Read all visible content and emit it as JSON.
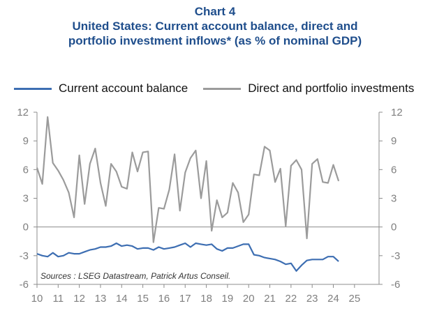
{
  "header": {
    "chart_number": "Chart 4",
    "title_line1": "United States: Current account balance, direct and",
    "title_line2": "portfolio investment inflows* (as % of nominal GDP)"
  },
  "colors": {
    "title": "#1f4e8c",
    "current_account": "#3d6eb2",
    "investments": "#9b9b9b",
    "axis": "#8c8c8c"
  },
  "chart_data": {
    "type": "line",
    "ylim": [
      -6,
      12
    ],
    "xlim": [
      10,
      25.5
    ],
    "yticks": [
      -6,
      -3,
      0,
      3,
      6,
      9,
      12
    ],
    "xticks": [
      10,
      11,
      12,
      13,
      14,
      15,
      16,
      17,
      18,
      19,
      20,
      21,
      22,
      23,
      24,
      25
    ],
    "grid": false,
    "legend_position": "top",
    "source": "Sources : LSEG Datastream, Patrick Artus Conseil.",
    "series": [
      {
        "name": "Current account balance",
        "x": [
          10.0,
          10.25,
          10.5,
          10.75,
          11.0,
          11.25,
          11.5,
          11.75,
          12.0,
          12.25,
          12.5,
          12.75,
          13.0,
          13.25,
          13.5,
          13.75,
          14.0,
          14.25,
          14.5,
          14.75,
          15.0,
          15.25,
          15.5,
          15.75,
          16.0,
          16.25,
          16.5,
          16.75,
          17.0,
          17.25,
          17.5,
          17.75,
          18.0,
          18.25,
          18.5,
          18.75,
          19.0,
          19.25,
          19.5,
          19.75,
          20.0,
          20.25,
          20.5,
          20.75,
          21.0,
          21.25,
          21.5,
          21.75,
          22.0,
          22.25,
          22.5,
          22.75,
          23.0,
          23.25,
          23.5,
          23.75,
          24.0,
          24.25
        ],
        "values": [
          -2.8,
          -3.0,
          -3.1,
          -2.7,
          -3.1,
          -3.0,
          -2.7,
          -2.8,
          -2.8,
          -2.6,
          -2.4,
          -2.3,
          -2.1,
          -2.1,
          -2.0,
          -1.7,
          -2.0,
          -1.9,
          -2.0,
          -2.3,
          -2.2,
          -2.2,
          -2.4,
          -2.1,
          -2.3,
          -2.2,
          -2.1,
          -1.9,
          -1.7,
          -2.1,
          -1.7,
          -1.8,
          -1.9,
          -1.8,
          -2.3,
          -2.5,
          -2.2,
          -2.2,
          -2.0,
          -1.8,
          -1.8,
          -2.9,
          -3.0,
          -3.2,
          -3.3,
          -3.4,
          -3.6,
          -3.9,
          -3.8,
          -4.6,
          -4.0,
          -3.5,
          -3.4,
          -3.4,
          -3.4,
          -3.1,
          -3.1,
          -3.6
        ]
      },
      {
        "name": "Direct and portfolio investments",
        "x": [
          10.0,
          10.25,
          10.5,
          10.75,
          11.0,
          11.25,
          11.5,
          11.75,
          12.0,
          12.25,
          12.5,
          12.75,
          13.0,
          13.25,
          13.5,
          13.75,
          14.0,
          14.25,
          14.5,
          14.75,
          15.0,
          15.25,
          15.5,
          15.75,
          16.0,
          16.25,
          16.5,
          16.75,
          17.0,
          17.25,
          17.5,
          17.75,
          18.0,
          18.25,
          18.5,
          18.75,
          19.0,
          19.25,
          19.5,
          19.75,
          20.0,
          20.25,
          20.5,
          20.75,
          21.0,
          21.25,
          21.5,
          21.75,
          22.0,
          22.25,
          22.5,
          22.75,
          23.0,
          23.25,
          23.5,
          23.75,
          24.0,
          24.25
        ],
        "values": [
          6.2,
          4.5,
          11.5,
          6.7,
          5.9,
          4.9,
          3.6,
          1.0,
          7.5,
          2.4,
          6.6,
          8.2,
          4.6,
          2.2,
          6.6,
          5.8,
          4.2,
          4.0,
          7.8,
          5.8,
          7.8,
          7.9,
          -1.6,
          2.0,
          1.9,
          3.9,
          7.6,
          1.7,
          5.7,
          7.2,
          8.0,
          3.0,
          6.9,
          -0.4,
          2.8,
          1.0,
          1.5,
          4.6,
          3.6,
          0.5,
          1.3,
          5.5,
          5.4,
          8.4,
          8.0,
          4.7,
          6.1,
          0.1,
          6.4,
          7.0,
          6.0,
          -1.2,
          6.6,
          7.1,
          4.7,
          4.6,
          6.5,
          4.8
        ]
      }
    ]
  }
}
